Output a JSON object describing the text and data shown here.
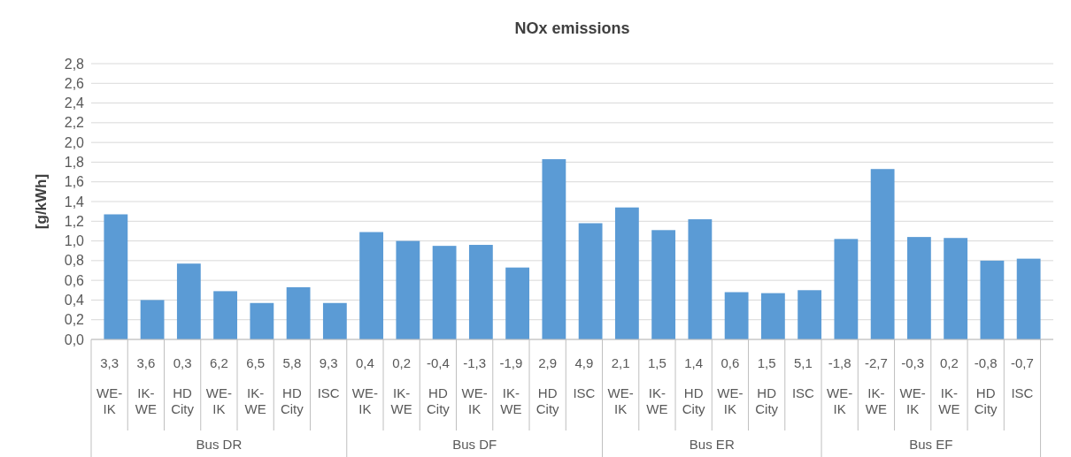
{
  "chart_data": {
    "type": "bar",
    "title": "NOx emissions",
    "ylabel": "[g/kWh]",
    "categories": [
      "3,3\nWE-\nIK",
      "3,6\nIK-\nWE",
      "0,3\nHD\nCity",
      "6,2\nWE-\nIK",
      "6,5\nIK-\nWE",
      "5,8\nHD\nCity",
      "9,3\nISC",
      "0,4\nWE-\nIK",
      "0,2\nIK-\nWE",
      "-0,4\nHD\nCity",
      "-1,3\nWE-\nIK",
      "-1,9\nIK-\nWE",
      "2,9\nHD\nCity",
      "4,9\nISC",
      "2,1\nWE-\nIK",
      "1,5\nIK-\nWE",
      "1,4\nHD\nCity",
      "0,6\nWE-\nIK",
      "1,5\nHD\nCity",
      "5,1\nISC",
      "-1,8\nWE-\nIK",
      "-2,7\nIK-\nWE",
      "-0,3\nWE-\nIK",
      "0,2\nIK-\nWE",
      "-0,8\nHD\nCity",
      "-0,7\nISC"
    ],
    "values": [
      1.27,
      0.4,
      0.77,
      0.49,
      0.37,
      0.53,
      0.37,
      1.09,
      1.0,
      0.95,
      0.96,
      0.73,
      1.83,
      1.18,
      1.34,
      1.11,
      1.22,
      0.48,
      0.47,
      0.5,
      1.02,
      1.73,
      1.04,
      1.03,
      0.8,
      0.82
    ],
    "color": "#5b9bd5",
    "ylim": [
      0,
      2.8
    ],
    "yticks": [
      {
        "value": 0,
        "label": "0,0"
      },
      {
        "value": 0.2,
        "label": "0,2"
      },
      {
        "value": 0.4,
        "label": "0,4"
      },
      {
        "value": 0.6,
        "label": "0,6"
      },
      {
        "value": 0.8,
        "label": "0,8"
      },
      {
        "value": 1.0,
        "label": "1,0"
      },
      {
        "value": 1.2,
        "label": "1,2"
      },
      {
        "value": 1.4,
        "label": "1,4"
      },
      {
        "value": 1.6,
        "label": "1,6"
      },
      {
        "value": 1.8,
        "label": "1,8"
      },
      {
        "value": 2.0,
        "label": "2,0"
      },
      {
        "value": 2.2,
        "label": "2,2"
      },
      {
        "value": 2.4,
        "label": "2,4"
      },
      {
        "value": 2.6,
        "label": "2,6"
      },
      {
        "value": 2.8,
        "label": "2,8"
      }
    ],
    "annotations": [
      "Bus DR",
      "Bus DF",
      "Bus ER",
      "Bus EF"
    ],
    "grid": "y"
  }
}
